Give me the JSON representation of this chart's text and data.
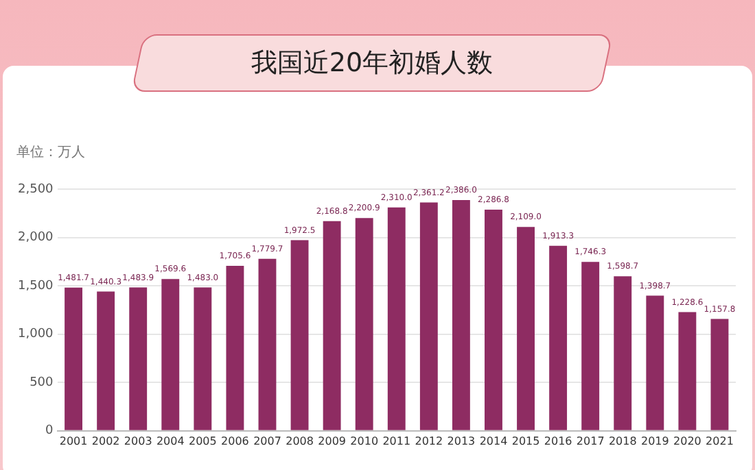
{
  "chart_data": {
    "type": "bar",
    "title": "我国近20年初婚人数",
    "ylabel": "单位：万人",
    "categories": [
      "2001",
      "2002",
      "2003",
      "2004",
      "2005",
      "2006",
      "2007",
      "2008",
      "2009",
      "2010",
      "2011",
      "2012",
      "2013",
      "2014",
      "2015",
      "2016",
      "2017",
      "2018",
      "2019",
      "2020",
      "2021"
    ],
    "values": [
      1481.7,
      1440.3,
      1483.9,
      1569.6,
      1483.0,
      1705.6,
      1779.7,
      1972.5,
      2168.8,
      2200.9,
      2310.0,
      2361.2,
      2386.0,
      2286.8,
      2109.0,
      1913.3,
      1746.3,
      1598.7,
      1398.7,
      1228.6,
      1157.8
    ],
    "value_labels": [
      "1,481.7",
      "1,440.3",
      "1,483.9",
      "1,569.6",
      "1,483.0",
      "1,705.6",
      "1,779.7",
      "1,972.5",
      "2,168.8",
      "2,200.9",
      "2,310.0",
      "2,361.2",
      "2,386.0",
      "2,286.8",
      "2,109.0",
      "1,913.3",
      "1,746.3",
      "1,598.7",
      "1,398.7",
      "1,228.6",
      "1,157.8"
    ],
    "color": "#8e2c62",
    "ylim": [
      0,
      2500
    ],
    "yticks": [
      0,
      {
        "value": 500,
        "label": "500"
      },
      {
        "value": 1000,
        "label": "1,000"
      },
      {
        "value": 1500,
        "label": "1,500"
      },
      {
        "value": 2000,
        "label": "2,000"
      },
      {
        "value": 2500,
        "label": "2,500"
      }
    ],
    "grid": "y",
    "legend": false
  }
}
